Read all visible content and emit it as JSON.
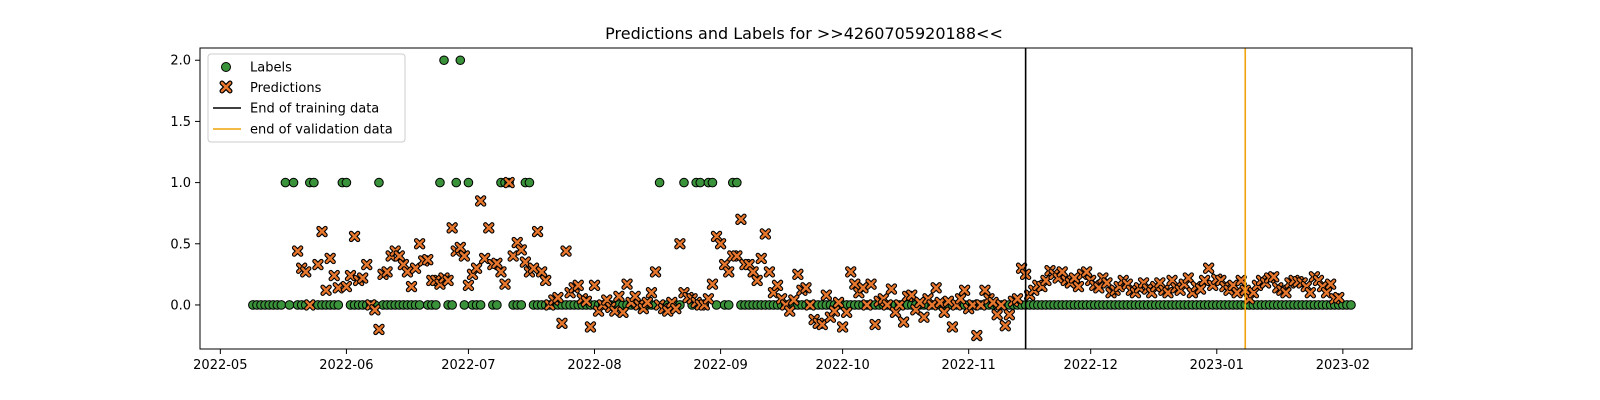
{
  "chart_data": {
    "type": "scatter",
    "title": "Predictions and Labels for >>4260705920188<<",
    "xlabel": "",
    "ylabel": "",
    "x_range": [
      "2022-04-26",
      "2023-02-18"
    ],
    "y_range": [
      -0.36,
      2.1
    ],
    "x_tick_dates": [
      "2022-05-01",
      "2022-06-01",
      "2022-07-01",
      "2022-08-01",
      "2022-09-01",
      "2022-10-01",
      "2022-11-01",
      "2022-12-01",
      "2023-01-01",
      "2023-02-01"
    ],
    "x_tick_labels": [
      "2022-05",
      "2022-06",
      "2022-07",
      "2022-08",
      "2022-09",
      "2022-10",
      "2022-11",
      "2022-12",
      "2023-01",
      "2023-02"
    ],
    "y_ticks": [
      0.0,
      0.5,
      1.0,
      1.5,
      2.0
    ],
    "y_tick_labels": [
      "0.0",
      "0.5",
      "1.0",
      "1.5",
      "2.0"
    ],
    "grid": false,
    "legend_position": "top-left",
    "legend": {
      "labels": "Labels",
      "predictions": "Predictions",
      "train_end": "End of training data",
      "val_end": "end of validation data"
    },
    "colors": {
      "labels_fill": "#3a923a",
      "predictions_fill": "#e8772e",
      "train_line": "#000000",
      "val_line": "#f0a30a"
    },
    "train_end_date": "2022-11-15",
    "val_end_date": "2023-01-08",
    "labels": {
      "start_date": "2022-05-09",
      "end_date": "2023-02-03",
      "ones": [
        "2022-05-17",
        "2022-05-19",
        "2022-05-23",
        "2022-05-24",
        "2022-05-31",
        "2022-06-01",
        "2022-06-09",
        "2022-06-24",
        "2022-06-28",
        "2022-07-01",
        "2022-07-09",
        "2022-07-10",
        "2022-07-11",
        "2022-07-15",
        "2022-07-16",
        "2022-08-17",
        "2022-08-23",
        "2022-08-26",
        "2022-08-27",
        "2022-08-29",
        "2022-08-30",
        "2022-09-04",
        "2022-09-05"
      ],
      "twos": [
        "2022-06-25",
        "2022-06-29"
      ],
      "gaps": [
        "2022-06-20",
        "2022-07-05",
        "2022-07-06",
        "2022-08-24",
        "2022-09-01"
      ]
    },
    "predictions": [
      {
        "x": "2022-05-20",
        "y": 0.44
      },
      {
        "x": "2022-05-21",
        "y": 0.3
      },
      {
        "x": "2022-05-22",
        "y": 0.27
      },
      {
        "x": "2022-05-23",
        "y": 0.0
      },
      {
        "x": "2022-05-25",
        "y": 0.33
      },
      {
        "x": "2022-05-26",
        "y": 0.6
      },
      {
        "x": "2022-05-27",
        "y": 0.12
      },
      {
        "x": "2022-05-28",
        "y": 0.38
      },
      {
        "x": "2022-05-29",
        "y": 0.24
      },
      {
        "x": "2022-05-30",
        "y": 0.14
      },
      {
        "x": "2022-06-01",
        "y": 0.15
      },
      {
        "x": "2022-06-02",
        "y": 0.24
      },
      {
        "x": "2022-06-03",
        "y": 0.56
      },
      {
        "x": "2022-06-04",
        "y": 0.2
      },
      {
        "x": "2022-06-05",
        "y": 0.22
      },
      {
        "x": "2022-06-06",
        "y": 0.33
      },
      {
        "x": "2022-06-07",
        "y": 0.0
      },
      {
        "x": "2022-06-08",
        "y": -0.04
      },
      {
        "x": "2022-06-09",
        "y": -0.2
      },
      {
        "x": "2022-06-10",
        "y": 0.25
      },
      {
        "x": "2022-06-11",
        "y": 0.27
      },
      {
        "x": "2022-06-12",
        "y": 0.4
      },
      {
        "x": "2022-06-13",
        "y": 0.44
      },
      {
        "x": "2022-06-14",
        "y": 0.4
      },
      {
        "x": "2022-06-15",
        "y": 0.33
      },
      {
        "x": "2022-06-16",
        "y": 0.27
      },
      {
        "x": "2022-06-17",
        "y": 0.15
      },
      {
        "x": "2022-06-18",
        "y": 0.3
      },
      {
        "x": "2022-06-19",
        "y": 0.5
      },
      {
        "x": "2022-06-20",
        "y": 0.36
      },
      {
        "x": "2022-06-21",
        "y": 0.37
      },
      {
        "x": "2022-06-22",
        "y": 0.2
      },
      {
        "x": "2022-06-23",
        "y": 0.2
      },
      {
        "x": "2022-06-24",
        "y": 0.17
      },
      {
        "x": "2022-06-25",
        "y": 0.22
      },
      {
        "x": "2022-06-26",
        "y": 0.2
      },
      {
        "x": "2022-06-27",
        "y": 0.63
      },
      {
        "x": "2022-06-28",
        "y": 0.44
      },
      {
        "x": "2022-06-29",
        "y": 0.47
      },
      {
        "x": "2022-06-30",
        "y": 0.4
      },
      {
        "x": "2022-07-01",
        "y": 0.16
      },
      {
        "x": "2022-07-02",
        "y": 0.25
      },
      {
        "x": "2022-07-03",
        "y": 0.3
      },
      {
        "x": "2022-07-04",
        "y": 0.85
      },
      {
        "x": "2022-07-05",
        "y": 0.38
      },
      {
        "x": "2022-07-06",
        "y": 0.63
      },
      {
        "x": "2022-07-07",
        "y": 0.33
      },
      {
        "x": "2022-07-08",
        "y": 0.34
      },
      {
        "x": "2022-07-09",
        "y": 0.27
      },
      {
        "x": "2022-07-10",
        "y": 0.17
      },
      {
        "x": "2022-07-11",
        "y": 1.0
      },
      {
        "x": "2022-07-12",
        "y": 0.4
      },
      {
        "x": "2022-07-13",
        "y": 0.51
      },
      {
        "x": "2022-07-14",
        "y": 0.45
      },
      {
        "x": "2022-07-15",
        "y": 0.35
      },
      {
        "x": "2022-07-16",
        "y": 0.27
      },
      {
        "x": "2022-07-17",
        "y": 0.3
      },
      {
        "x": "2022-07-18",
        "y": 0.6
      },
      {
        "x": "2022-07-19",
        "y": 0.27
      },
      {
        "x": "2022-07-20",
        "y": 0.2
      },
      {
        "x": "2022-07-21",
        "y": 0.0
      },
      {
        "x": "2022-07-22",
        "y": 0.04
      },
      {
        "x": "2022-07-23",
        "y": 0.06
      },
      {
        "x": "2022-07-24",
        "y": -0.15
      },
      {
        "x": "2022-07-25",
        "y": 0.44
      },
      {
        "x": "2022-07-26",
        "y": 0.1
      },
      {
        "x": "2022-07-27",
        "y": 0.14
      },
      {
        "x": "2022-07-28",
        "y": 0.16
      },
      {
        "x": "2022-07-29",
        "y": 0.05
      },
      {
        "x": "2022-07-30",
        "y": 0.03
      },
      {
        "x": "2022-07-31",
        "y": -0.18
      },
      {
        "x": "2022-08-01",
        "y": 0.16
      },
      {
        "x": "2022-08-02",
        "y": -0.05
      },
      {
        "x": "2022-08-03",
        "y": 0.0
      },
      {
        "x": "2022-08-04",
        "y": 0.04
      },
      {
        "x": "2022-08-05",
        "y": -0.02
      },
      {
        "x": "2022-08-06",
        "y": -0.05
      },
      {
        "x": "2022-08-07",
        "y": 0.07
      },
      {
        "x": "2022-08-08",
        "y": -0.06
      },
      {
        "x": "2022-08-09",
        "y": 0.17
      },
      {
        "x": "2022-08-10",
        "y": 0.02
      },
      {
        "x": "2022-08-11",
        "y": 0.07
      },
      {
        "x": "2022-08-12",
        "y": 0.0
      },
      {
        "x": "2022-08-13",
        "y": -0.03
      },
      {
        "x": "2022-08-14",
        "y": 0.02
      },
      {
        "x": "2022-08-15",
        "y": 0.1
      },
      {
        "x": "2022-08-16",
        "y": 0.27
      },
      {
        "x": "2022-08-17",
        "y": 0.0
      },
      {
        "x": "2022-08-18",
        "y": -0.03
      },
      {
        "x": "2022-08-19",
        "y": -0.05
      },
      {
        "x": "2022-08-20",
        "y": 0.02
      },
      {
        "x": "2022-08-21",
        "y": -0.03
      },
      {
        "x": "2022-08-22",
        "y": 0.5
      },
      {
        "x": "2022-08-23",
        "y": 0.1
      },
      {
        "x": "2022-08-24",
        "y": 0.06
      },
      {
        "x": "2022-08-25",
        "y": 0.05
      },
      {
        "x": "2022-08-26",
        "y": 0.02
      },
      {
        "x": "2022-08-27",
        "y": 0.0
      },
      {
        "x": "2022-08-28",
        "y": 0.0
      },
      {
        "x": "2022-08-29",
        "y": 0.05
      },
      {
        "x": "2022-08-30",
        "y": 0.17
      },
      {
        "x": "2022-08-31",
        "y": 0.56
      },
      {
        "x": "2022-09-01",
        "y": 0.5
      },
      {
        "x": "2022-09-02",
        "y": 0.33
      },
      {
        "x": "2022-09-03",
        "y": 0.27
      },
      {
        "x": "2022-09-04",
        "y": 0.4
      },
      {
        "x": "2022-09-05",
        "y": 0.4
      },
      {
        "x": "2022-09-06",
        "y": 0.7
      },
      {
        "x": "2022-09-07",
        "y": 0.33
      },
      {
        "x": "2022-09-08",
        "y": 0.33
      },
      {
        "x": "2022-09-09",
        "y": 0.27
      },
      {
        "x": "2022-09-10",
        "y": 0.2
      },
      {
        "x": "2022-09-11",
        "y": 0.38
      },
      {
        "x": "2022-09-12",
        "y": 0.58
      },
      {
        "x": "2022-09-13",
        "y": 0.27
      },
      {
        "x": "2022-09-14",
        "y": 0.1
      },
      {
        "x": "2022-09-15",
        "y": 0.16
      },
      {
        "x": "2022-09-16",
        "y": 0.05
      },
      {
        "x": "2022-09-17",
        "y": 0.0
      },
      {
        "x": "2022-09-18",
        "y": -0.05
      },
      {
        "x": "2022-09-19",
        "y": 0.04
      },
      {
        "x": "2022-09-20",
        "y": 0.25
      },
      {
        "x": "2022-09-21",
        "y": 0.12
      },
      {
        "x": "2022-09-22",
        "y": 0.14
      },
      {
        "x": "2022-09-23",
        "y": 0.0
      },
      {
        "x": "2022-09-24",
        "y": -0.12
      },
      {
        "x": "2022-09-25",
        "y": -0.15
      },
      {
        "x": "2022-09-26",
        "y": -0.16
      },
      {
        "x": "2022-09-27",
        "y": 0.08
      },
      {
        "x": "2022-09-28",
        "y": -0.1
      },
      {
        "x": "2022-09-29",
        "y": -0.05
      },
      {
        "x": "2022-09-30",
        "y": 0.02
      },
      {
        "x": "2022-10-01",
        "y": -0.18
      },
      {
        "x": "2022-10-02",
        "y": -0.06
      },
      {
        "x": "2022-10-03",
        "y": 0.27
      },
      {
        "x": "2022-10-04",
        "y": 0.17
      },
      {
        "x": "2022-10-05",
        "y": 0.1
      },
      {
        "x": "2022-10-06",
        "y": 0.14
      },
      {
        "x": "2022-10-07",
        "y": 0.0
      },
      {
        "x": "2022-10-08",
        "y": 0.17
      },
      {
        "x": "2022-10-09",
        "y": -0.16
      },
      {
        "x": "2022-10-10",
        "y": 0.03
      },
      {
        "x": "2022-10-11",
        "y": 0.05
      },
      {
        "x": "2022-10-12",
        "y": 0.0
      },
      {
        "x": "2022-10-13",
        "y": 0.13
      },
      {
        "x": "2022-10-14",
        "y": -0.06
      },
      {
        "x": "2022-10-15",
        "y": 0.0
      },
      {
        "x": "2022-10-16",
        "y": -0.14
      },
      {
        "x": "2022-10-17",
        "y": 0.07
      },
      {
        "x": "2022-10-18",
        "y": 0.08
      },
      {
        "x": "2022-10-19",
        "y": -0.04
      },
      {
        "x": "2022-10-20",
        "y": 0.02
      },
      {
        "x": "2022-10-21",
        "y": -0.1
      },
      {
        "x": "2022-10-22",
        "y": 0.05
      },
      {
        "x": "2022-10-23",
        "y": 0.0
      },
      {
        "x": "2022-10-24",
        "y": 0.14
      },
      {
        "x": "2022-10-25",
        "y": 0.02
      },
      {
        "x": "2022-10-26",
        "y": -0.06
      },
      {
        "x": "2022-10-27",
        "y": 0.03
      },
      {
        "x": "2022-10-28",
        "y": -0.18
      },
      {
        "x": "2022-10-29",
        "y": 0.0
      },
      {
        "x": "2022-10-30",
        "y": 0.05
      },
      {
        "x": "2022-10-31",
        "y": 0.12
      },
      {
        "x": "2022-11-01",
        "y": -0.03
      },
      {
        "x": "2022-11-02",
        "y": 0.0
      },
      {
        "x": "2022-11-03",
        "y": -0.25
      },
      {
        "x": "2022-11-04",
        "y": 0.0
      },
      {
        "x": "2022-11-05",
        "y": 0.12
      },
      {
        "x": "2022-11-06",
        "y": 0.05
      },
      {
        "x": "2022-11-07",
        "y": 0.02
      },
      {
        "x": "2022-11-08",
        "y": -0.08
      },
      {
        "x": "2022-11-09",
        "y": 0.0
      },
      {
        "x": "2022-11-10",
        "y": -0.17
      },
      {
        "x": "2022-11-11",
        "y": -0.08
      },
      {
        "x": "2022-11-12",
        "y": 0.03
      },
      {
        "x": "2022-11-13",
        "y": 0.05
      },
      {
        "x": "2022-11-14",
        "y": 0.3
      },
      {
        "x": "2022-11-15",
        "y": 0.25
      },
      {
        "x": "2022-11-16",
        "y": 0.08
      },
      {
        "x": "2022-11-17",
        "y": 0.12
      },
      {
        "x": "2022-11-18",
        "y": 0.16
      },
      {
        "x": "2022-11-19",
        "y": 0.15
      },
      {
        "x": "2022-11-20",
        "y": 0.2
      },
      {
        "x": "2022-11-21",
        "y": 0.28
      },
      {
        "x": "2022-11-22",
        "y": 0.25
      },
      {
        "x": "2022-11-23",
        "y": 0.22
      },
      {
        "x": "2022-11-24",
        "y": 0.27
      },
      {
        "x": "2022-11-25",
        "y": 0.2
      },
      {
        "x": "2022-11-26",
        "y": 0.18
      },
      {
        "x": "2022-11-27",
        "y": 0.22
      },
      {
        "x": "2022-11-28",
        "y": 0.15
      },
      {
        "x": "2022-11-29",
        "y": 0.25
      },
      {
        "x": "2022-11-30",
        "y": 0.27
      },
      {
        "x": "2022-12-01",
        "y": 0.2
      },
      {
        "x": "2022-12-02",
        "y": 0.16
      },
      {
        "x": "2022-12-03",
        "y": 0.14
      },
      {
        "x": "2022-12-04",
        "y": 0.22
      },
      {
        "x": "2022-12-05",
        "y": 0.18
      },
      {
        "x": "2022-12-06",
        "y": 0.1
      },
      {
        "x": "2022-12-07",
        "y": 0.12
      },
      {
        "x": "2022-12-08",
        "y": 0.15
      },
      {
        "x": "2022-12-09",
        "y": 0.2
      },
      {
        "x": "2022-12-10",
        "y": 0.17
      },
      {
        "x": "2022-12-11",
        "y": 0.12
      },
      {
        "x": "2022-12-12",
        "y": 0.1
      },
      {
        "x": "2022-12-13",
        "y": 0.14
      },
      {
        "x": "2022-12-14",
        "y": 0.18
      },
      {
        "x": "2022-12-15",
        "y": 0.13
      },
      {
        "x": "2022-12-16",
        "y": 0.1
      },
      {
        "x": "2022-12-17",
        "y": 0.15
      },
      {
        "x": "2022-12-18",
        "y": 0.18
      },
      {
        "x": "2022-12-19",
        "y": 0.12
      },
      {
        "x": "2022-12-20",
        "y": 0.1
      },
      {
        "x": "2022-12-21",
        "y": 0.2
      },
      {
        "x": "2022-12-22",
        "y": 0.14
      },
      {
        "x": "2022-12-23",
        "y": 0.12
      },
      {
        "x": "2022-12-24",
        "y": 0.17
      },
      {
        "x": "2022-12-25",
        "y": 0.22
      },
      {
        "x": "2022-12-26",
        "y": 0.1
      },
      {
        "x": "2022-12-27",
        "y": 0.15
      },
      {
        "x": "2022-12-28",
        "y": 0.13
      },
      {
        "x": "2022-12-29",
        "y": 0.2
      },
      {
        "x": "2022-12-30",
        "y": 0.3
      },
      {
        "x": "2022-12-31",
        "y": 0.16
      },
      {
        "x": "2023-01-01",
        "y": 0.21
      },
      {
        "x": "2023-01-02",
        "y": 0.2
      },
      {
        "x": "2023-01-03",
        "y": 0.15
      },
      {
        "x": "2023-01-04",
        "y": 0.12
      },
      {
        "x": "2023-01-05",
        "y": 0.16
      },
      {
        "x": "2023-01-06",
        "y": 0.1
      },
      {
        "x": "2023-01-07",
        "y": 0.2
      },
      {
        "x": "2023-01-08",
        "y": 0.12
      },
      {
        "x": "2023-01-09",
        "y": 0.05
      },
      {
        "x": "2023-01-10",
        "y": 0.1
      },
      {
        "x": "2023-01-11",
        "y": 0.16
      },
      {
        "x": "2023-01-12",
        "y": 0.2
      },
      {
        "x": "2023-01-13",
        "y": 0.18
      },
      {
        "x": "2023-01-14",
        "y": 0.22
      },
      {
        "x": "2023-01-15",
        "y": 0.23
      },
      {
        "x": "2023-01-16",
        "y": 0.14
      },
      {
        "x": "2023-01-17",
        "y": 0.12
      },
      {
        "x": "2023-01-18",
        "y": 0.1
      },
      {
        "x": "2023-01-19",
        "y": 0.18
      },
      {
        "x": "2023-01-20",
        "y": 0.2
      },
      {
        "x": "2023-01-21",
        "y": 0.19
      },
      {
        "x": "2023-01-22",
        "y": 0.18
      },
      {
        "x": "2023-01-23",
        "y": 0.15
      },
      {
        "x": "2023-01-24",
        "y": 0.1
      },
      {
        "x": "2023-01-25",
        "y": 0.23
      },
      {
        "x": "2023-01-26",
        "y": 0.2
      },
      {
        "x": "2023-01-27",
        "y": 0.15
      },
      {
        "x": "2023-01-28",
        "y": 0.1
      },
      {
        "x": "2023-01-29",
        "y": 0.17
      },
      {
        "x": "2023-01-30",
        "y": 0.05
      },
      {
        "x": "2023-01-31",
        "y": 0.06
      }
    ]
  }
}
